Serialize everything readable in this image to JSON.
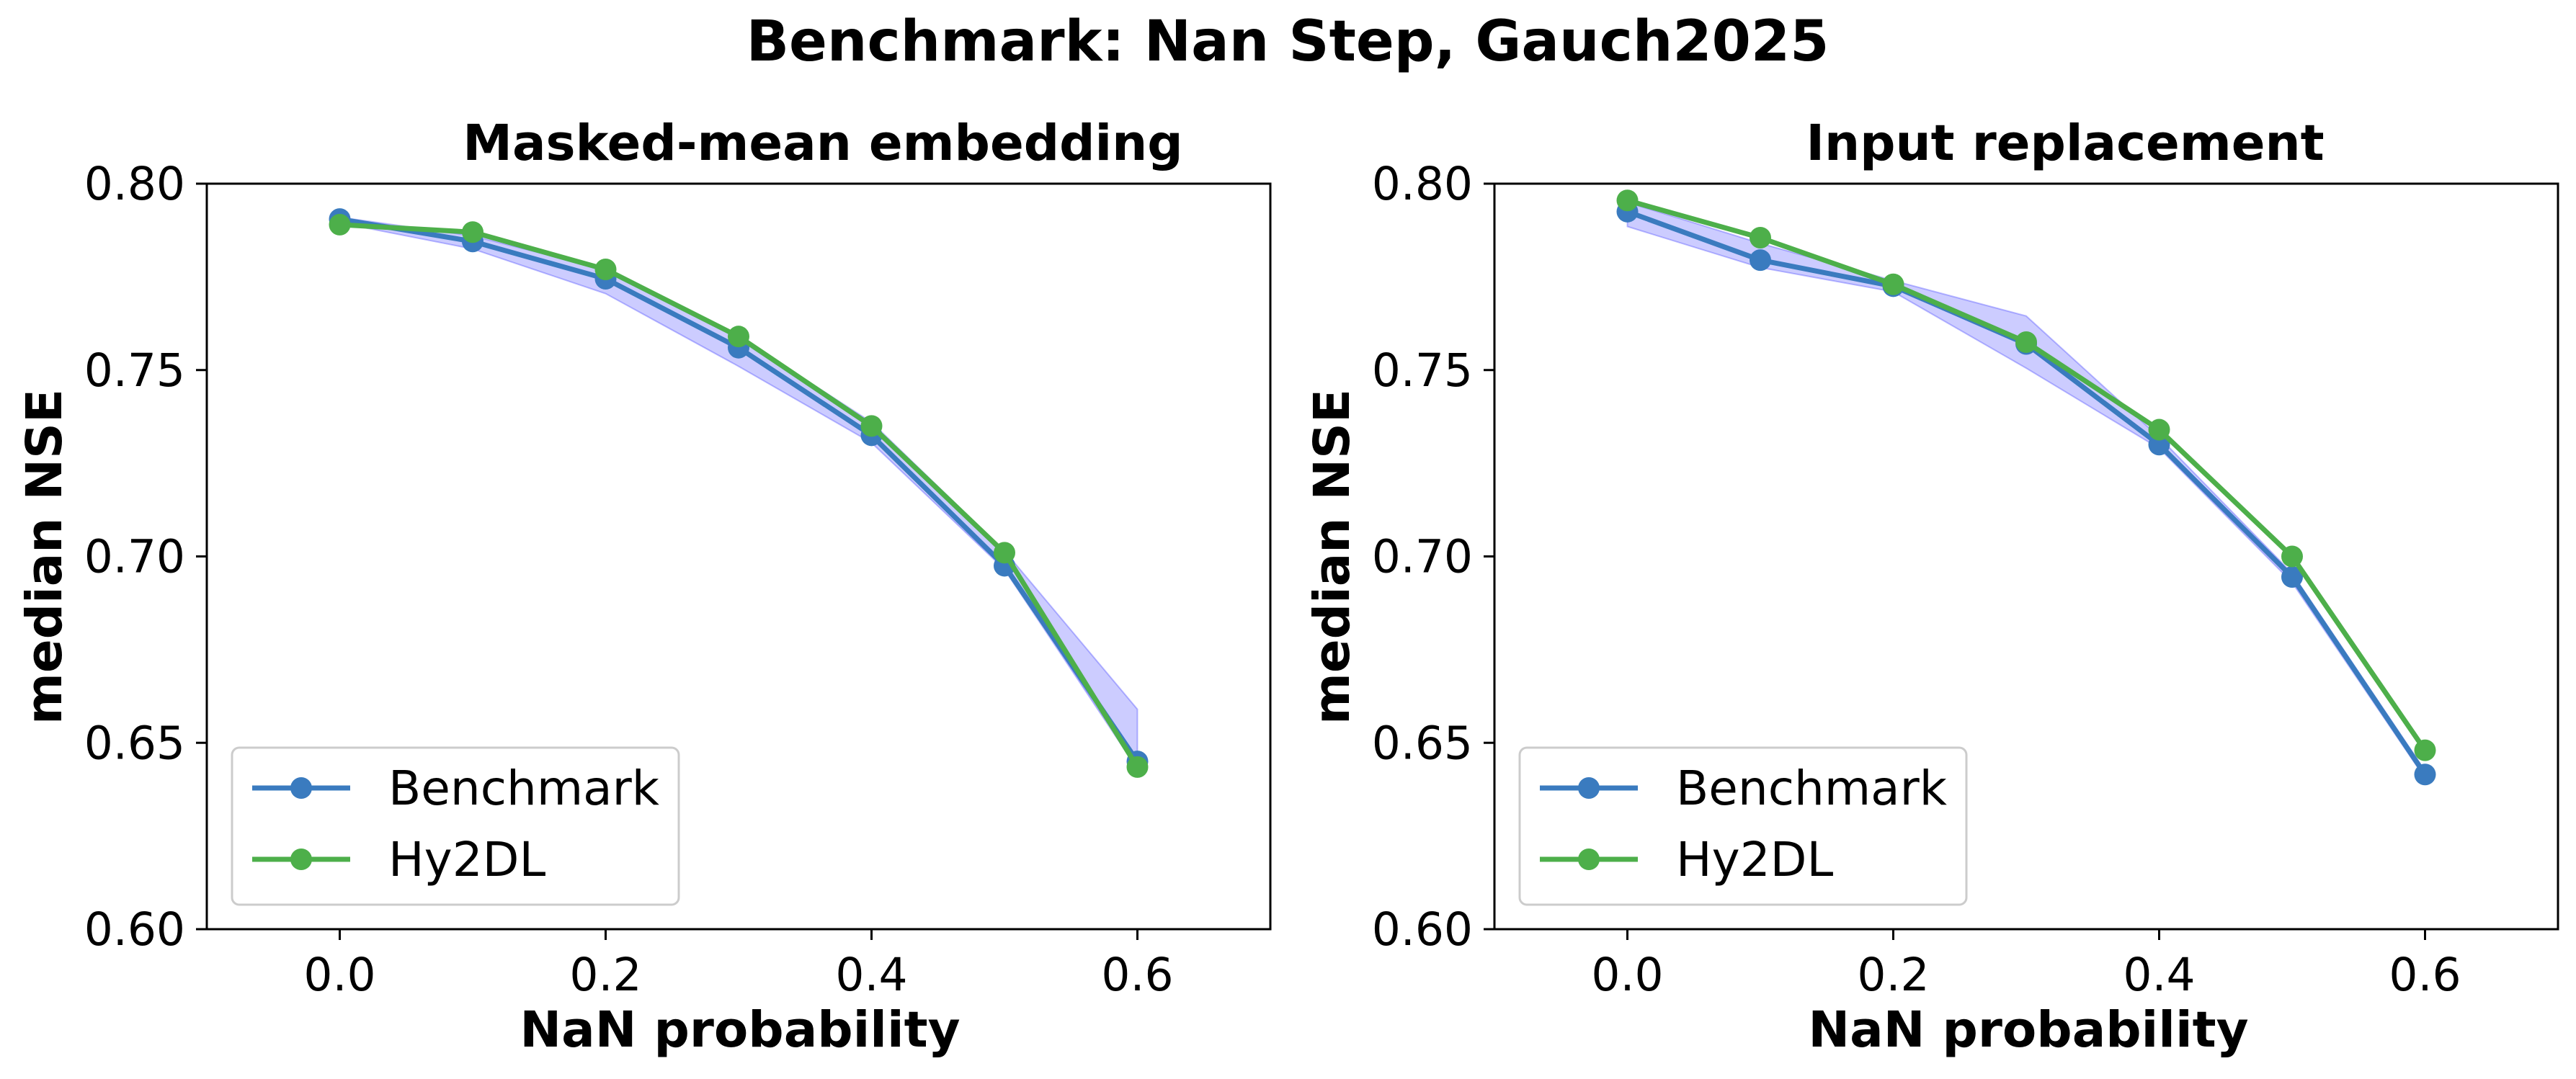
{
  "figure": {
    "suptitle": "Benchmark: Nan Step, Gauch2025"
  },
  "chart_data": [
    {
      "type": "line",
      "title": "Masked-mean embedding",
      "xlabel": "NaN probability",
      "ylabel": "median NSE",
      "xlim": [
        -0.1,
        0.7
      ],
      "ylim": [
        0.6,
        0.8
      ],
      "xticks": [
        "0.0",
        "0.2",
        "0.4",
        "0.6"
      ],
      "yticks": [
        "0.60",
        "0.65",
        "0.70",
        "0.75",
        "0.80"
      ],
      "xtick_values": [
        0.0,
        0.2,
        0.4,
        0.6
      ],
      "ytick_values": [
        0.6,
        0.65,
        0.7,
        0.75,
        0.8
      ],
      "x": [
        0.0,
        0.1,
        0.2,
        0.3,
        0.4,
        0.5,
        0.6
      ],
      "series": [
        {
          "name": "Benchmark",
          "color": "#3a7bbf",
          "values": [
            0.7905,
            0.7845,
            0.7745,
            0.756,
            0.7325,
            0.6975,
            0.645
          ],
          "band_upper": [
            0.791,
            0.786,
            0.777,
            0.759,
            0.736,
            0.7015,
            0.659
          ],
          "band_lower": [
            0.7895,
            0.7825,
            0.7705,
            0.751,
            0.7305,
            0.6965,
            0.643
          ]
        },
        {
          "name": "Hy2DL",
          "color": "#4daf4a",
          "values": [
            0.789,
            0.787,
            0.777,
            0.759,
            0.735,
            0.701,
            0.6435
          ]
        }
      ],
      "band_color": "#0000ff",
      "legend": "lower-left",
      "grid": false
    },
    {
      "type": "line",
      "title": "Input replacement",
      "xlabel": "NaN probability",
      "ylabel": "median NSE",
      "xlim": [
        -0.1,
        0.7
      ],
      "ylim": [
        0.6,
        0.8
      ],
      "xticks": [
        "0.0",
        "0.2",
        "0.4",
        "0.6"
      ],
      "yticks": [
        "0.60",
        "0.65",
        "0.70",
        "0.75",
        "0.80"
      ],
      "xtick_values": [
        0.0,
        0.2,
        0.4,
        0.6
      ],
      "ytick_values": [
        0.6,
        0.65,
        0.7,
        0.75,
        0.8
      ],
      "x": [
        0.0,
        0.1,
        0.2,
        0.3,
        0.4,
        0.5,
        0.6
      ],
      "series": [
        {
          "name": "Benchmark",
          "color": "#3a7bbf",
          "values": [
            0.7925,
            0.7795,
            0.7725,
            0.757,
            0.73,
            0.6945,
            0.6415
          ],
          "band_upper": [
            0.795,
            0.784,
            0.774,
            0.7645,
            0.732,
            0.6955,
            0.6425
          ],
          "band_lower": [
            0.7885,
            0.7775,
            0.771,
            0.7505,
            0.729,
            0.693,
            0.6405
          ]
        },
        {
          "name": "Hy2DL",
          "color": "#4daf4a",
          "values": [
            0.7955,
            0.7855,
            0.773,
            0.7575,
            0.734,
            0.7,
            0.648
          ]
        }
      ],
      "band_color": "#0000ff",
      "legend": "lower-left",
      "grid": false
    }
  ]
}
